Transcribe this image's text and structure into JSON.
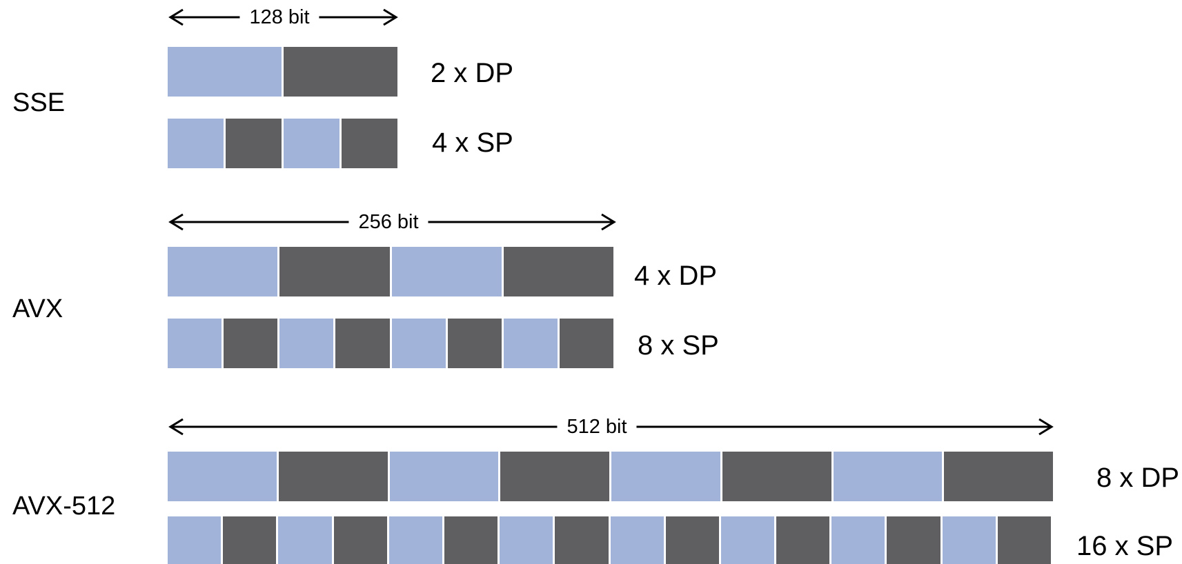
{
  "colors": {
    "lane_a": "#a2b3da",
    "lane_b": "#5f5f62",
    "arrow": "#000000"
  },
  "groups": [
    {
      "name": "SSE",
      "width_label": "128 bit",
      "rows": [
        {
          "label": "2 x DP",
          "lanes": 2
        },
        {
          "label": "4 x SP",
          "lanes": 4
        }
      ]
    },
    {
      "name": "AVX",
      "width_label": "256 bit",
      "rows": [
        {
          "label": "4 x DP",
          "lanes": 4
        },
        {
          "label": "8 x SP",
          "lanes": 8
        }
      ]
    },
    {
      "name": "AVX-512",
      "width_label": "512 bit",
      "rows": [
        {
          "label": "8 x DP",
          "lanes": 8
        },
        {
          "label": "16 x SP",
          "lanes": 16
        }
      ]
    }
  ]
}
